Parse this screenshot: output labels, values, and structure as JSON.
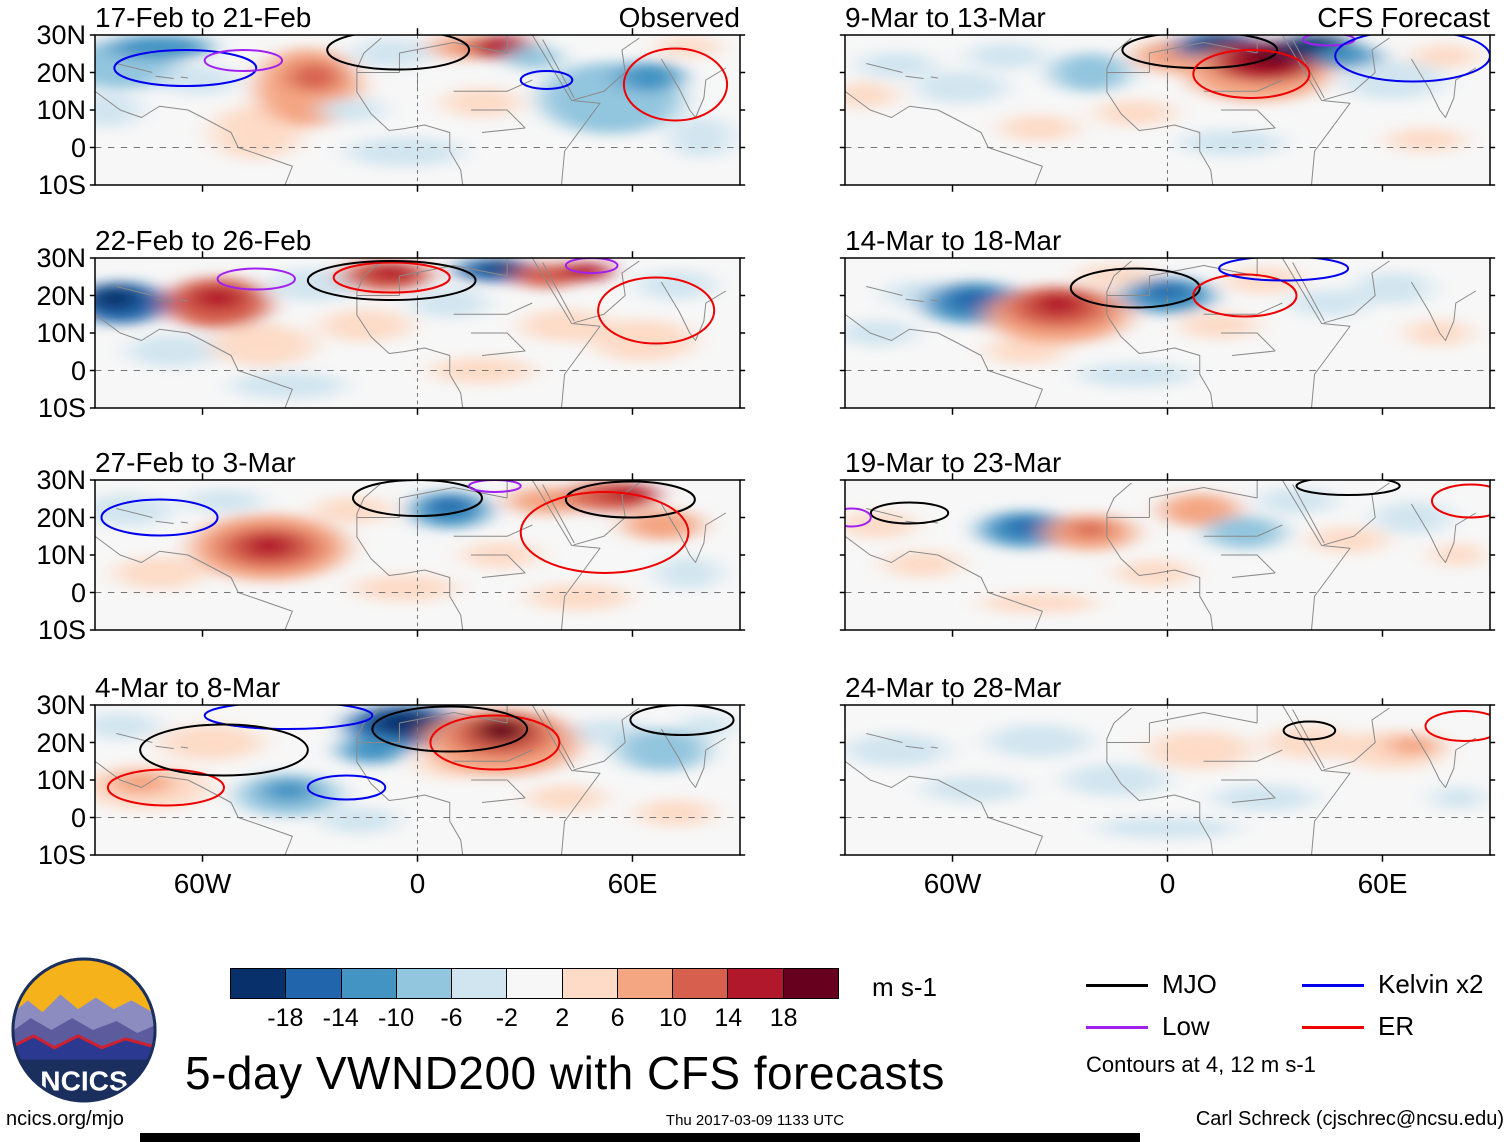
{
  "figure": {
    "title": "5-day VWND200 with CFS forecasts"
  },
  "axes": {
    "y_ticks": [
      "30N",
      "20N",
      "10N",
      "0",
      "10S"
    ],
    "x_ticks": [
      "60W",
      "0",
      "60E"
    ]
  },
  "colorbar": {
    "ticks": [
      "-18",
      "-14",
      "-10",
      "-6",
      "-2",
      "2",
      "6",
      "10",
      "14",
      "18"
    ],
    "colors": [
      "#08306b",
      "#2166ac",
      "#4393c3",
      "#92c5de",
      "#d1e5f0",
      "#f7f7f7",
      "#fddbc7",
      "#f4a582",
      "#d6604d",
      "#b2182b",
      "#67001f"
    ],
    "unit_label": "m s-1"
  },
  "legend": {
    "items": [
      {
        "key": "mjo",
        "label": "MJO",
        "color": "#000000"
      },
      {
        "key": "low",
        "label": "Low",
        "color": "#a020f0"
      },
      {
        "key": "kelvin",
        "label": "Kelvin x2",
        "color": "#0000ee"
      },
      {
        "key": "er",
        "label": "ER",
        "color": "#ee0000"
      }
    ],
    "note": "Contours at 4, 12 m s-1"
  },
  "footer": {
    "left": "ncics.org/mjo",
    "center": "Thu 2017-03-09 1133 UTC",
    "right": "Carl Schreck (cjschrec@ncsu.edu)"
  },
  "logo": {
    "text": "NCICS"
  },
  "palette": {
    "bg": "#f7f7f7",
    "b3": "#08306b",
    "b2": "#2166ac",
    "b1": "#4393c3",
    "lb": "#92c5de",
    "llb": "#d1e5f0",
    "lo": "#fddbc7",
    "o": "#f4a582",
    "r1": "#d6604d",
    "r2": "#b2182b",
    "r3": "#67001f"
  },
  "contour_colors": {
    "black": "#000000",
    "purple": "#a020f0",
    "blue": "#0000ee",
    "red": "#ee0000"
  },
  "panels": [
    {
      "id": "obs-1",
      "title": "17-Feb to 21-Feb",
      "corner_label": "Observed",
      "col": 0,
      "row": 0,
      "blobs": [
        [
          4,
          20,
          9,
          16,
          "lb"
        ],
        [
          2,
          50,
          5,
          12,
          "llb"
        ],
        [
          10,
          8,
          8,
          8,
          "b1"
        ],
        [
          16,
          30,
          6,
          10,
          "llb"
        ],
        [
          25,
          65,
          7,
          18,
          "lo"
        ],
        [
          33,
          35,
          8,
          26,
          "o"
        ],
        [
          34,
          28,
          4,
          10,
          "r1"
        ],
        [
          46,
          12,
          6,
          10,
          "llb"
        ],
        [
          48,
          78,
          9,
          10,
          "llb"
        ],
        [
          57,
          8,
          5,
          8,
          "o"
        ],
        [
          63,
          8,
          5,
          8,
          "r2"
        ],
        [
          60,
          45,
          6,
          10,
          "lo"
        ],
        [
          68,
          15,
          4,
          8,
          "lb"
        ],
        [
          80,
          42,
          11,
          24,
          "lb"
        ],
        [
          86,
          28,
          5,
          10,
          "b1"
        ],
        [
          94,
          68,
          5,
          14,
          "llb"
        ],
        [
          92,
          8,
          5,
          7,
          "lo"
        ],
        [
          40,
          50,
          5,
          8,
          "llb"
        ]
      ],
      "contours": [
        [
          14,
          22,
          11,
          12,
          "blue"
        ],
        [
          23,
          17,
          6,
          7,
          "purple"
        ],
        [
          47,
          10,
          11,
          13,
          "black"
        ],
        [
          70,
          30,
          4,
          6,
          "blue"
        ],
        [
          90,
          33,
          8,
          24,
          "red"
        ]
      ]
    },
    {
      "id": "obs-2",
      "title": "22-Feb to 26-Feb",
      "corner_label": "",
      "col": 0,
      "row": 1,
      "blobs": [
        [
          4,
          30,
          7,
          14,
          "b2"
        ],
        [
          3,
          27,
          4,
          8,
          "b3"
        ],
        [
          12,
          62,
          7,
          11,
          "llb"
        ],
        [
          19,
          30,
          8,
          17,
          "r1"
        ],
        [
          19,
          27,
          4,
          8,
          "r2"
        ],
        [
          26,
          58,
          8,
          14,
          "lo"
        ],
        [
          34,
          18,
          7,
          11,
          "llb"
        ],
        [
          45,
          12,
          7,
          10,
          "r1"
        ],
        [
          46,
          10,
          4,
          6,
          "r2"
        ],
        [
          42,
          45,
          7,
          11,
          "lo"
        ],
        [
          55,
          30,
          6,
          10,
          "llb"
        ],
        [
          62,
          8,
          6,
          8,
          "b2"
        ],
        [
          63,
          6,
          3,
          4,
          "b3"
        ],
        [
          70,
          12,
          5,
          8,
          "r1"
        ],
        [
          76,
          9,
          4,
          6,
          "r2"
        ],
        [
          73,
          45,
          7,
          11,
          "lo"
        ],
        [
          85,
          55,
          8,
          14,
          "lo"
        ],
        [
          90,
          18,
          6,
          10,
          "llb"
        ],
        [
          30,
          85,
          9,
          9,
          "llb"
        ],
        [
          60,
          75,
          8,
          9,
          "lo"
        ]
      ],
      "contours": [
        [
          25,
          14,
          6,
          7,
          "purple"
        ],
        [
          46,
          13,
          9,
          10,
          "red"
        ],
        [
          46,
          15,
          13,
          13,
          "black"
        ],
        [
          77,
          5,
          4,
          5,
          "purple"
        ],
        [
          87,
          35,
          9,
          22,
          "red"
        ]
      ]
    },
    {
      "id": "obs-3",
      "title": "27-Feb to 3-Mar",
      "corner_label": "",
      "col": 0,
      "row": 2,
      "blobs": [
        [
          5,
          20,
          7,
          11,
          "llb"
        ],
        [
          10,
          62,
          7,
          11,
          "lo"
        ],
        [
          27,
          45,
          12,
          22,
          "o"
        ],
        [
          27,
          45,
          8,
          14,
          "r1"
        ],
        [
          27,
          44,
          4,
          8,
          "r2"
        ],
        [
          20,
          14,
          6,
          8,
          "llb"
        ],
        [
          40,
          20,
          6,
          9,
          "lo"
        ],
        [
          48,
          72,
          8,
          9,
          "lo"
        ],
        [
          55,
          20,
          6,
          12,
          "b1"
        ],
        [
          55,
          17,
          3,
          6,
          "b2"
        ],
        [
          63,
          50,
          6,
          9,
          "lo"
        ],
        [
          70,
          14,
          6,
          9,
          "o"
        ],
        [
          80,
          11,
          7,
          10,
          "r1"
        ],
        [
          83,
          9,
          4,
          6,
          "r2"
        ],
        [
          88,
          30,
          6,
          10,
          "o"
        ],
        [
          92,
          62,
          5,
          11,
          "llb"
        ],
        [
          75,
          78,
          8,
          9,
          "lo"
        ]
      ],
      "contours": [
        [
          10,
          25,
          9,
          12,
          "blue"
        ],
        [
          50,
          12,
          10,
          12,
          "black"
        ],
        [
          83,
          13,
          10,
          12,
          "black"
        ],
        [
          79,
          35,
          13,
          27,
          "red"
        ],
        [
          62,
          4,
          4,
          4,
          "purple"
        ]
      ]
    },
    {
      "id": "obs-4",
      "title": "4-Mar to 8-Mar",
      "corner_label": "",
      "col": 0,
      "row": 3,
      "blobs": [
        [
          8,
          55,
          10,
          15,
          "lo"
        ],
        [
          7,
          52,
          5,
          8,
          "o"
        ],
        [
          4,
          14,
          6,
          9,
          "llb"
        ],
        [
          18,
          25,
          8,
          12,
          "lo"
        ],
        [
          30,
          60,
          8,
          14,
          "lb"
        ],
        [
          30,
          57,
          4,
          8,
          "b1"
        ],
        [
          41,
          77,
          6,
          9,
          "llb"
        ],
        [
          48,
          14,
          9,
          14,
          "b2"
        ],
        [
          48,
          12,
          5,
          9,
          "b3"
        ],
        [
          43,
          30,
          5,
          9,
          "b1"
        ],
        [
          56,
          40,
          6,
          9,
          "lo"
        ],
        [
          63,
          25,
          12,
          22,
          "o"
        ],
        [
          63,
          20,
          8,
          15,
          "r1"
        ],
        [
          63,
          17,
          4,
          9,
          "r3"
        ],
        [
          73,
          62,
          6,
          9,
          "lo"
        ],
        [
          80,
          18,
          6,
          9,
          "llb"
        ],
        [
          88,
          30,
          7,
          14,
          "lb"
        ],
        [
          95,
          14,
          4,
          8,
          "llb"
        ],
        [
          90,
          72,
          6,
          9,
          "lo"
        ]
      ],
      "contours": [
        [
          30,
          7,
          13,
          9,
          "blue"
        ],
        [
          39,
          55,
          6,
          8,
          "blue"
        ],
        [
          11,
          55,
          9,
          12,
          "red"
        ],
        [
          20,
          30,
          13,
          17,
          "black"
        ],
        [
          62,
          25,
          10,
          18,
          "red"
        ],
        [
          55,
          16,
          12,
          15,
          "black"
        ],
        [
          91,
          10,
          8,
          10,
          "black"
        ]
      ]
    },
    {
      "id": "fcst-1",
      "title": "9-Mar to 13-Mar",
      "corner_label": "CFS Forecast",
      "col": 1,
      "row": 0,
      "blobs": [
        [
          3,
          40,
          5,
          9,
          "lo"
        ],
        [
          8,
          20,
          6,
          9,
          "llb"
        ],
        [
          18,
          35,
          7,
          11,
          "llb"
        ],
        [
          25,
          14,
          6,
          9,
          "llb"
        ],
        [
          30,
          62,
          6,
          9,
          "lo"
        ],
        [
          38,
          25,
          6,
          13,
          "lb"
        ],
        [
          45,
          52,
          6,
          9,
          "lo"
        ],
        [
          52,
          14,
          7,
          11,
          "o"
        ],
        [
          58,
          8,
          7,
          10,
          "b2"
        ],
        [
          58,
          6,
          4,
          6,
          "b3"
        ],
        [
          64,
          25,
          11,
          19,
          "o"
        ],
        [
          65,
          18,
          8,
          13,
          "r2"
        ],
        [
          66,
          14,
          4,
          8,
          "r3"
        ],
        [
          73,
          8,
          6,
          8,
          "b3"
        ],
        [
          78,
          15,
          5,
          8,
          "b1"
        ],
        [
          85,
          30,
          8,
          13,
          "llb"
        ],
        [
          93,
          14,
          5,
          8,
          "lo"
        ],
        [
          60,
          72,
          8,
          9,
          "llb"
        ],
        [
          90,
          70,
          6,
          8,
          "lo"
        ]
      ],
      "contours": [
        [
          55,
          10,
          12,
          12,
          "black"
        ],
        [
          63,
          26,
          9,
          16,
          "red"
        ],
        [
          75,
          3,
          4,
          4,
          "purple"
        ],
        [
          88,
          14,
          12,
          17,
          "blue"
        ]
      ]
    },
    {
      "id": "fcst-2",
      "title": "14-Mar to 18-Mar",
      "corner_label": "",
      "col": 1,
      "row": 1,
      "blobs": [
        [
          5,
          50,
          6,
          9,
          "llb"
        ],
        [
          12,
          24,
          6,
          9,
          "llb"
        ],
        [
          20,
          30,
          8,
          14,
          "b1"
        ],
        [
          20,
          28,
          4,
          8,
          "b2"
        ],
        [
          28,
          62,
          6,
          9,
          "lo"
        ],
        [
          33,
          38,
          11,
          19,
          "o"
        ],
        [
          33,
          33,
          8,
          14,
          "r1"
        ],
        [
          33,
          31,
          4,
          8,
          "r2"
        ],
        [
          42,
          12,
          6,
          8,
          "lo"
        ],
        [
          50,
          25,
          7,
          12,
          "b1"
        ],
        [
          50,
          22,
          3,
          6,
          "b2"
        ],
        [
          58,
          45,
          6,
          9,
          "lo"
        ],
        [
          65,
          15,
          6,
          9,
          "lo"
        ],
        [
          75,
          30,
          6,
          9,
          "llb"
        ],
        [
          85,
          20,
          6,
          11,
          "llb"
        ],
        [
          92,
          50,
          5,
          9,
          "lo"
        ],
        [
          45,
          78,
          9,
          8,
          "llb"
        ]
      ],
      "contours": [
        [
          45,
          20,
          10,
          13,
          "black"
        ],
        [
          62,
          25,
          8,
          14,
          "red"
        ],
        [
          68,
          7,
          10,
          8,
          "blue"
        ]
      ]
    },
    {
      "id": "fcst-3",
      "title": "19-Mar to 23-Mar",
      "corner_label": "",
      "col": 1,
      "row": 2,
      "blobs": [
        [
          5,
          30,
          6,
          9,
          "lo"
        ],
        [
          12,
          56,
          6,
          9,
          "lo"
        ],
        [
          28,
          33,
          7,
          12,
          "b1"
        ],
        [
          28,
          31,
          3,
          6,
          "b2"
        ],
        [
          38,
          35,
          7,
          12,
          "o"
        ],
        [
          38,
          33,
          3,
          6,
          "r1"
        ],
        [
          48,
          62,
          6,
          9,
          "lo"
        ],
        [
          55,
          20,
          6,
          11,
          "o"
        ],
        [
          62,
          35,
          6,
          11,
          "lb"
        ],
        [
          70,
          14,
          6,
          9,
          "llb"
        ],
        [
          78,
          40,
          6,
          9,
          "lo"
        ],
        [
          88,
          25,
          6,
          11,
          "llb"
        ],
        [
          95,
          50,
          4,
          8,
          "lo"
        ],
        [
          30,
          82,
          9,
          7,
          "lo"
        ]
      ],
      "contours": [
        [
          10,
          22,
          6,
          7,
          "black"
        ],
        [
          1,
          25,
          3,
          6,
          "purple"
        ],
        [
          78,
          4,
          8,
          6,
          "black"
        ],
        [
          97,
          14,
          6,
          11,
          "red"
        ]
      ]
    },
    {
      "id": "fcst-4",
      "title": "24-Mar to 28-Mar",
      "corner_label": "",
      "col": 1,
      "row": 3,
      "blobs": [
        [
          8,
          30,
          8,
          11,
          "llb"
        ],
        [
          20,
          56,
          8,
          9,
          "llb"
        ],
        [
          30,
          24,
          8,
          11,
          "llb"
        ],
        [
          42,
          50,
          8,
          11,
          "llb"
        ],
        [
          55,
          30,
          8,
          13,
          "lo"
        ],
        [
          65,
          62,
          8,
          9,
          "llb"
        ],
        [
          72,
          25,
          7,
          11,
          "lo"
        ],
        [
          85,
          30,
          8,
          13,
          "lo"
        ],
        [
          88,
          27,
          4,
          7,
          "o"
        ],
        [
          95,
          62,
          4,
          8,
          "llb"
        ],
        [
          50,
          82,
          11,
          7,
          "llb"
        ]
      ],
      "contours": [
        [
          72,
          17,
          4,
          6,
          "black"
        ],
        [
          96,
          14,
          6,
          10,
          "red"
        ]
      ]
    }
  ],
  "chart_data": {
    "type": "heatmap",
    "title": "5-day VWND200 with CFS forecasts",
    "units": "m s-1",
    "color_levels": [
      -18,
      -14,
      -10,
      -6,
      -2,
      2,
      6,
      10,
      14,
      18
    ],
    "y_ticks": [
      "30N",
      "20N",
      "10N",
      "0",
      "10S"
    ],
    "x_ticks": [
      "60W",
      "0",
      "60E"
    ],
    "columns": [
      "Observed",
      "CFS Forecast"
    ],
    "panel_dates": [
      "17-Feb to 21-Feb",
      "22-Feb to 26-Feb",
      "27-Feb to 3-Mar",
      "4-Mar to 8-Mar",
      "9-Mar to 13-Mar",
      "14-Mar to 18-Mar",
      "19-Mar to 23-Mar",
      "24-Mar to 28-Mar"
    ],
    "overlay_contours": {
      "MJO": "black",
      "Low": "purple",
      "Kelvin x2": "blue",
      "ER": "red",
      "contour_levels_note": "Contours at 4, 12 m s-1"
    },
    "legend_position": "bottom-right",
    "grid": "dashed equator and prime meridian reference lines"
  }
}
